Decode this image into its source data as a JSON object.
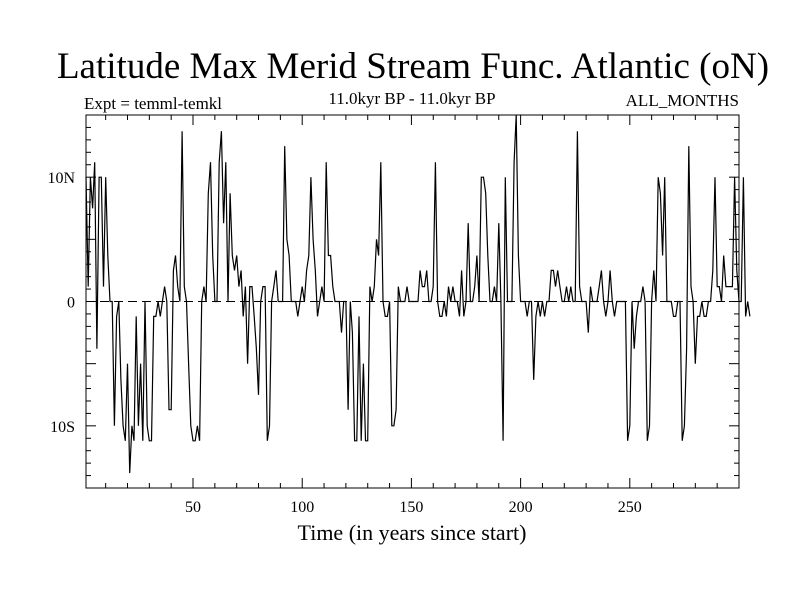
{
  "chart_data": {
    "type": "line",
    "title": "Latitude Max Merid Stream Func. Atlantic (oN)",
    "subtitle_left": "Expt = temml-temkl",
    "subtitle_center": "11.0kyr BP - 11.0kyr BP",
    "subtitle_right": "ALL_MONTHS",
    "xlabel": "Time (in years since start)",
    "ylabel": "",
    "xlim": [
      1,
      300
    ],
    "ylim": [
      -15,
      15
    ],
    "x_ticks": [
      {
        "value": 50,
        "label": "50"
      },
      {
        "value": 100,
        "label": "100"
      },
      {
        "value": 150,
        "label": "150"
      },
      {
        "value": 200,
        "label": "200"
      },
      {
        "value": 250,
        "label": "250"
      }
    ],
    "y_ticks": [
      {
        "value": 10,
        "label": "10N"
      },
      {
        "value": 0,
        "label": "0"
      },
      {
        "value": -10,
        "label": "10S"
      }
    ],
    "zero_line": true,
    "grid": false,
    "series": [
      {
        "color": "#000000",
        "x_start": 1,
        "x_step": 1,
        "values": [
          10,
          1.2,
          10,
          7.5,
          11.2,
          -3.8,
          10,
          10,
          1.2,
          10,
          3.7,
          0,
          0,
          -10,
          -1.2,
          0,
          -6.3,
          -10,
          -11.2,
          -5,
          -13.8,
          -10,
          -11.2,
          -1.2,
          -10,
          -5,
          -11.2,
          0,
          -10,
          -11.2,
          -11.2,
          -1.2,
          -1.2,
          0,
          -1.2,
          0,
          1.2,
          0,
          -8.7,
          -8.7,
          2.5,
          3.7,
          1.2,
          0,
          13.7,
          1.2,
          0,
          -5,
          -10,
          -11.2,
          -11.2,
          -10,
          -11.2,
          0,
          1.2,
          0,
          8.7,
          11.2,
          3.7,
          0,
          0,
          11.2,
          13.7,
          6.3,
          11.2,
          0,
          8.7,
          3.7,
          2.5,
          3.7,
          1.2,
          2.5,
          -1.2,
          1.2,
          -5,
          1.2,
          1.2,
          -1.2,
          -3.7,
          -7.5,
          0,
          1.2,
          1.2,
          -11.2,
          -10,
          0,
          1.2,
          2.5,
          0,
          0,
          0,
          12.5,
          5,
          3.7,
          0,
          0,
          0,
          -1.2,
          0,
          1.2,
          0,
          2.5,
          3.7,
          10,
          5,
          2.5,
          -1.2,
          0,
          1.2,
          0,
          11.2,
          3.7,
          3.7,
          1.2,
          0,
          0,
          0,
          -2.5,
          0,
          0,
          -8.7,
          0,
          -2.5,
          -11.2,
          -11.2,
          -1.2,
          -11.2,
          -5,
          -11.2,
          -11.2,
          1.2,
          0,
          1.2,
          5,
          3.7,
          11.2,
          0,
          -1.2,
          -1.2,
          0,
          -10,
          -10,
          -8.7,
          1.2,
          0,
          0,
          0,
          1.2,
          0,
          0,
          0,
          0,
          0,
          2.5,
          1.2,
          1.2,
          2.5,
          0,
          0,
          1.2,
          11.2,
          0,
          -1.2,
          -1.2,
          0,
          -1.2,
          1.2,
          0,
          1.2,
          0,
          0,
          -1.2,
          2.5,
          -1.2,
          0,
          6.3,
          0,
          0,
          1.2,
          3.7,
          0,
          10,
          10,
          8.7,
          3.7,
          0,
          0,
          1.2,
          0,
          6.3,
          0,
          -11.2,
          10,
          0,
          0,
          0,
          11.2,
          15,
          3.7,
          0,
          0,
          0,
          -1.2,
          0,
          0,
          -6.3,
          -1.2,
          0,
          -1.2,
          0,
          -1.2,
          0,
          0,
          2.5,
          2.5,
          1.2,
          2.5,
          1.2,
          0,
          0,
          1.2,
          0,
          1.2,
          0,
          0,
          13.7,
          1.2,
          0,
          0,
          0,
          -2.5,
          1.2,
          0,
          0,
          0,
          1.2,
          2.5,
          0,
          -1.2,
          0,
          2.5,
          0,
          -1.2,
          0,
          0,
          0,
          0,
          0,
          -11.2,
          -10,
          0,
          -3.8,
          -1.2,
          0,
          0,
          1.2,
          0,
          -11.2,
          -10,
          0,
          2.5,
          0,
          10,
          8.7,
          3.7,
          10,
          0,
          0,
          0,
          -1.2,
          -1.2,
          0,
          0,
          -11.2,
          -10,
          -3.8,
          12.5,
          1.2,
          0,
          -5,
          -1.2,
          -1.2,
          0,
          -1.2,
          -1.2,
          0,
          0,
          2.5,
          10,
          1.2,
          1.2,
          0,
          3.7,
          1.2,
          1.2,
          1.2,
          1.2,
          10,
          2.5,
          0,
          0,
          10,
          -1.2,
          0,
          -1.2
        ]
      }
    ]
  }
}
